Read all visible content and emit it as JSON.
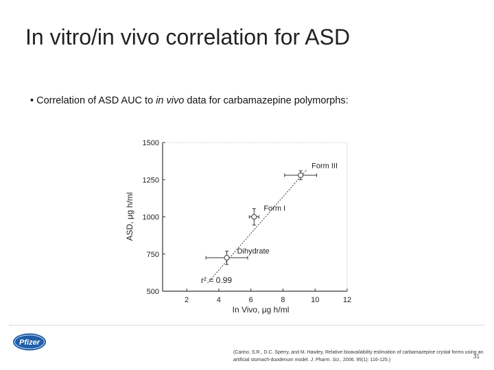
{
  "slide": {
    "title": "In vitro/in vivo correlation for ASD",
    "bullet": {
      "prefix": "• Correlation of ASD AUC to ",
      "italic": "in vivo",
      "suffix": " data for carbamazepine polymorphs:"
    },
    "citation": {
      "part1": "(Carino, S.R., D.C. Sperry, and M. Hawley, Relative bioavailability estimation of carbamazepine crystal forms using an artificial stomach-duodenum model. ",
      "journal": "J. Pharm. Sci.",
      "part2": ", 2006. 95(1): 116-125.)"
    },
    "page_number": "31",
    "logo_text": "Pfizer"
  },
  "colors": {
    "logo_blue": "#1f5fa8",
    "title_text": "#222222",
    "plot_ink": "#333333"
  },
  "chart_data": {
    "type": "scatter",
    "xlabel": "In Vivo, μg h/ml",
    "ylabel": "ASD, μg h/ml",
    "xlim": [
      0.5,
      12
    ],
    "ylim": [
      500,
      1500
    ],
    "x_ticks": [
      2,
      4,
      6,
      8,
      10,
      12
    ],
    "y_ticks": [
      500,
      750,
      1000,
      1250,
      1500
    ],
    "grid": false,
    "points": [
      {
        "name": "Dihydrate",
        "x": 4.5,
        "y": 725,
        "x_err": 1.3,
        "y_err": 45
      },
      {
        "name": "Form I",
        "x": 6.2,
        "y": 1000,
        "x_err": 0.3,
        "y_err": 55
      },
      {
        "name": "Form III",
        "x": 9.1,
        "y": 1280,
        "x_err": 1.0,
        "y_err": 30
      }
    ],
    "fit_line": {
      "x": [
        3.3,
        9.5
      ],
      "y": [
        555,
        1320
      ]
    },
    "annotation": "r² = 0.99"
  }
}
